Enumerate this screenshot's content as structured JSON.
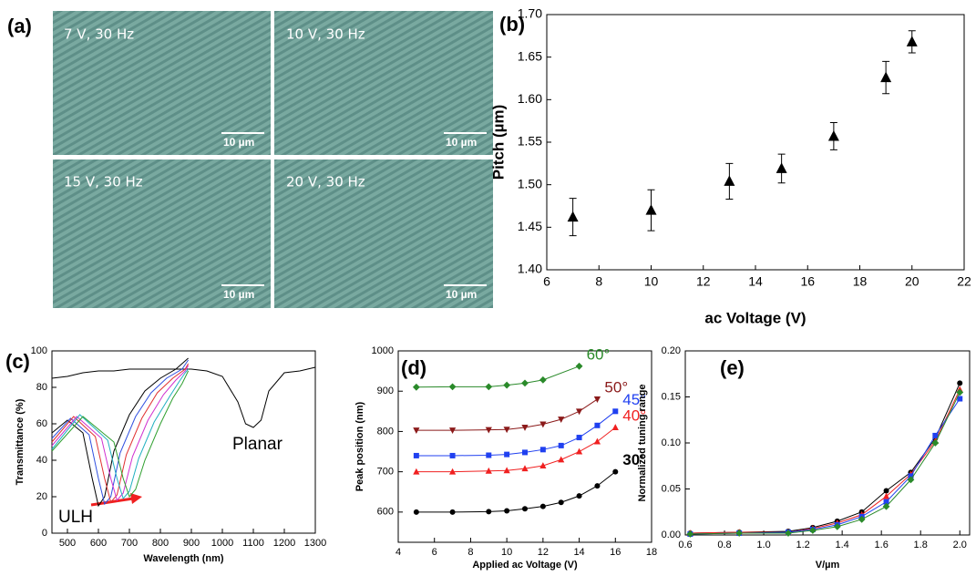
{
  "panel_a": {
    "label": "(a)",
    "images": [
      {
        "caption": "7 V, 30 Hz",
        "scale": "10 µm"
      },
      {
        "caption": "10 V, 30 Hz",
        "scale": "10 µm"
      },
      {
        "caption": "15 V, 30 Hz",
        "scale": "10 µm"
      },
      {
        "caption": "20 V, 30 Hz",
        "scale": "10 µm"
      }
    ]
  },
  "chart_data": [
    {
      "type": "scatter",
      "label": "(b)",
      "x_label": "ac Voltage (V)",
      "y_label": "Pitch (µm)",
      "xlim": [
        6,
        22
      ],
      "xticks": [
        6,
        8,
        10,
        12,
        14,
        16,
        18,
        20,
        22
      ],
      "ylim": [
        1.4,
        1.7
      ],
      "yticks": [
        {
          "value": 1.4,
          "label": "1.40"
        },
        1.45,
        {
          "value": 1.5,
          "label": "1.50"
        },
        1.55,
        {
          "value": 1.6,
          "label": "1.60"
        },
        1.65,
        {
          "value": 1.7,
          "label": "1.70"
        }
      ],
      "x": [
        7,
        10,
        13,
        15,
        17,
        19,
        20
      ],
      "series": [
        {
          "color": "#000000",
          "marker": "triangle",
          "values": [
            1.462,
            1.47,
            1.504,
            1.519,
            1.557,
            1.626,
            1.668
          ],
          "errors": [
            0.022,
            0.024,
            0.021,
            0.017,
            0.016,
            0.019,
            0.013
          ]
        }
      ]
    },
    {
      "type": "line",
      "label": "(c)",
      "x_label": "Wavelength (nm)",
      "y_label": "Transmittance (%)",
      "xlim": [
        450,
        1300
      ],
      "xticks": [
        500,
        600,
        700,
        800,
        900,
        1000,
        1100,
        1200,
        1300
      ],
      "ylim": [
        0,
        100
      ],
      "yticks": [
        0,
        20,
        40,
        60,
        80,
        100
      ],
      "annotations": [
        "Planar",
        "ULH"
      ],
      "series": [
        {
          "color": "#000000",
          "marker": "none",
          "x": [
            450,
            500,
            550,
            600,
            650,
            700,
            750,
            800,
            850,
            900,
            950,
            1000,
            1050,
            1075,
            1100,
            1125,
            1150,
            1200,
            1250,
            1300
          ],
          "values": [
            85,
            86,
            88,
            89,
            89,
            90,
            90,
            90,
            90,
            90,
            89,
            86,
            72,
            60,
            58,
            62,
            78,
            88,
            89,
            91
          ]
        },
        {
          "color": "#000000",
          "marker": "none",
          "x": [
            450,
            500,
            550,
            580,
            600,
            620,
            650,
            700,
            750,
            800,
            850,
            890
          ],
          "values": [
            55,
            62,
            55,
            30,
            15,
            20,
            45,
            65,
            78,
            85,
            90,
            96
          ]
        },
        {
          "color": "#3050e0",
          "marker": "none",
          "x": [
            450,
            510,
            570,
            600,
            620,
            640,
            670,
            720,
            770,
            820,
            870,
            890
          ],
          "values": [
            52,
            63,
            54,
            30,
            16,
            20,
            44,
            64,
            77,
            85,
            90,
            95
          ]
        },
        {
          "color": "#e03030",
          "marker": "none",
          "x": [
            450,
            520,
            590,
            620,
            640,
            660,
            690,
            740,
            790,
            840,
            880,
            890
          ],
          "values": [
            50,
            64,
            53,
            30,
            17,
            21,
            43,
            63,
            77,
            85,
            90,
            93
          ]
        },
        {
          "color": "#d030d0",
          "marker": "none",
          "x": [
            450,
            530,
            610,
            640,
            660,
            680,
            710,
            760,
            810,
            850,
            880,
            890
          ],
          "values": [
            48,
            64,
            52,
            30,
            18,
            22,
            42,
            62,
            76,
            84,
            89,
            92
          ]
        },
        {
          "color": "#20b0c0",
          "marker": "none",
          "x": [
            450,
            540,
            630,
            660,
            680,
            700,
            730,
            780,
            830,
            860,
            880,
            890
          ],
          "values": [
            46,
            65,
            51,
            30,
            19,
            23,
            41,
            61,
            75,
            83,
            88,
            90
          ]
        },
        {
          "color": "#30a030",
          "marker": "none",
          "x": [
            450,
            550,
            650,
            680,
            700,
            720,
            750,
            800,
            840,
            870,
            890
          ],
          "values": [
            45,
            64,
            50,
            30,
            20,
            24,
            40,
            60,
            74,
            82,
            89
          ]
        }
      ]
    },
    {
      "type": "line",
      "label": "(d)",
      "x_label": "Applied ac Voltage (V)",
      "y_label": "Peak position (nm)",
      "xlim": [
        4,
        18
      ],
      "xticks": [
        4,
        6,
        8,
        10,
        12,
        14,
        16,
        18
      ],
      "ylim": [
        525,
        1000
      ],
      "yticks": [
        600,
        700,
        800,
        900,
        1000
      ],
      "series": [
        {
          "name": "30°",
          "color": "#000000",
          "marker": "circle",
          "x": [
            5,
            7,
            9,
            10,
            11,
            12,
            13,
            14,
            15,
            16
          ],
          "values": [
            600,
            600,
            601,
            603,
            608,
            614,
            624,
            640,
            665,
            700
          ]
        },
        {
          "name": "40°",
          "color": "#f02020",
          "marker": "triangle",
          "x": [
            5,
            7,
            9,
            10,
            11,
            12,
            13,
            14,
            15,
            16
          ],
          "values": [
            700,
            700,
            702,
            703,
            708,
            715,
            730,
            750,
            775,
            810
          ]
        },
        {
          "name": "45°",
          "color": "#2040f0",
          "marker": "square",
          "x": [
            5,
            7,
            9,
            10,
            11,
            12,
            13,
            14,
            15,
            16
          ],
          "values": [
            740,
            740,
            741,
            743,
            748,
            755,
            765,
            785,
            815,
            850
          ]
        },
        {
          "name": "50°",
          "color": "#8b1a1a",
          "marker": "triangle-down",
          "x": [
            5,
            7,
            9,
            10,
            11,
            12,
            13,
            14,
            15
          ],
          "values": [
            803,
            803,
            804,
            805,
            810,
            818,
            830,
            850,
            880
          ]
        },
        {
          "name": "60°",
          "color": "#2a8a2a",
          "marker": "diamond",
          "x": [
            5,
            7,
            9,
            10,
            11,
            12,
            14
          ],
          "values": [
            910,
            911,
            911,
            915,
            920,
            928,
            962
          ]
        }
      ]
    },
    {
      "type": "line",
      "label": "(e)",
      "x_label": "V/µm",
      "y_label": "Normalized tuning range",
      "xlim": [
        0.6,
        2.05
      ],
      "xticks": [
        0.6,
        0.8,
        {
          "value": 1.0,
          "label": "1.0"
        },
        1.2,
        1.4,
        1.6,
        1.8,
        {
          "value": 2.0,
          "label": "2.0"
        }
      ],
      "ylim": [
        0,
        0.2
      ],
      "yticks": [
        {
          "value": 0,
          "label": "0.00"
        },
        {
          "value": 0.05,
          "label": "0.05"
        },
        {
          "value": 0.1,
          "label": "0.10"
        },
        {
          "value": 0.15,
          "label": "0.15"
        },
        {
          "value": 0.2,
          "label": "0.20"
        }
      ],
      "x": [
        0.625,
        0.875,
        1.125,
        1.25,
        1.375,
        1.5,
        1.625,
        1.75,
        1.875,
        2.0
      ],
      "series": [
        {
          "color": "#000000",
          "marker": "circle",
          "values": [
            0.002,
            0.003,
            0.004,
            0.008,
            0.015,
            0.025,
            0.048,
            0.068,
            0.105,
            0.165
          ]
        },
        {
          "color": "#f02020",
          "marker": "triangle",
          "values": [
            0.002,
            0.003,
            0.003,
            0.007,
            0.013,
            0.022,
            0.042,
            0.066,
            0.102,
            0.158
          ]
        },
        {
          "color": "#2040f0",
          "marker": "square",
          "values": [
            0.001,
            0.002,
            0.003,
            0.006,
            0.011,
            0.02,
            0.036,
            0.064,
            0.108,
            0.148
          ]
        },
        {
          "color": "#2a8a2a",
          "marker": "diamond",
          "values": [
            0.001,
            0.002,
            0.002,
            0.005,
            0.009,
            0.017,
            0.031,
            0.06,
            0.1,
            0.155
          ]
        }
      ]
    }
  ]
}
